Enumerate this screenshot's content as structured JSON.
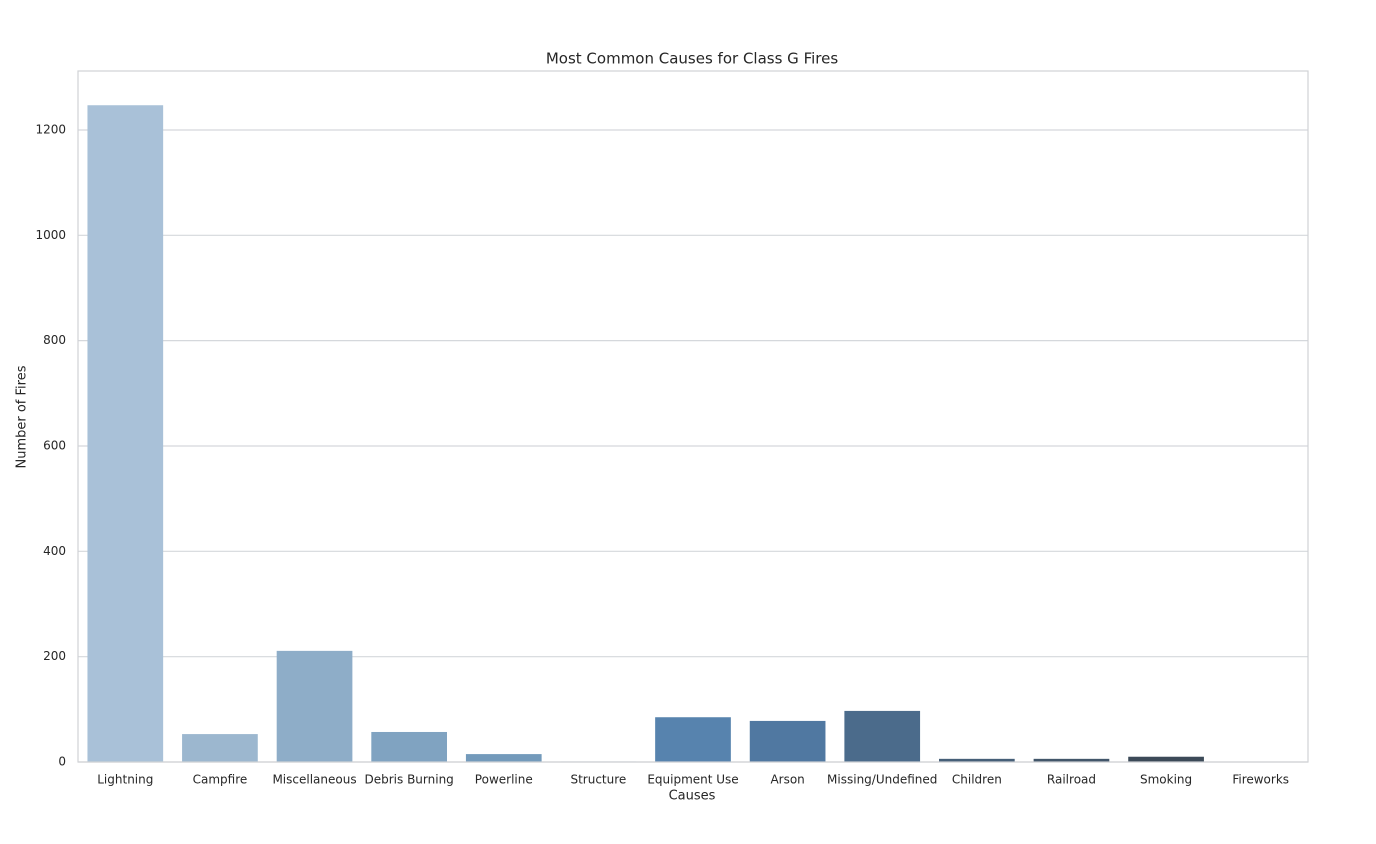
{
  "chart_data": {
    "type": "bar",
    "title": "Most Common Causes for Class G Fires",
    "x_label": "Causes",
    "y_label": "Number of Fires",
    "categories": [
      "Lightning",
      "Campfire",
      "Miscellaneous",
      "Debris Burning",
      "Powerline",
      "Structure",
      "Equipment Use",
      "Arson",
      "Missing/Undefined",
      "Children",
      "Railroad",
      "Smoking",
      "Fireworks"
    ],
    "values": [
      1247,
      53,
      211,
      57,
      15,
      1,
      85,
      78,
      97,
      6,
      6,
      10,
      0
    ],
    "colors": [
      "#a9c1d8",
      "#9cb7cf",
      "#8eadc8",
      "#80a3c1",
      "#739abb",
      "#6890b7",
      "#5783ae",
      "#5078a1",
      "#4b6b8b",
      "#465f78",
      "#42566a",
      "#3c4a58",
      "#363f48"
    ],
    "ylim": [
      0,
      1312
    ],
    "yticks": [
      0,
      200,
      400,
      600,
      800,
      1000,
      1200
    ],
    "grid": true
  }
}
